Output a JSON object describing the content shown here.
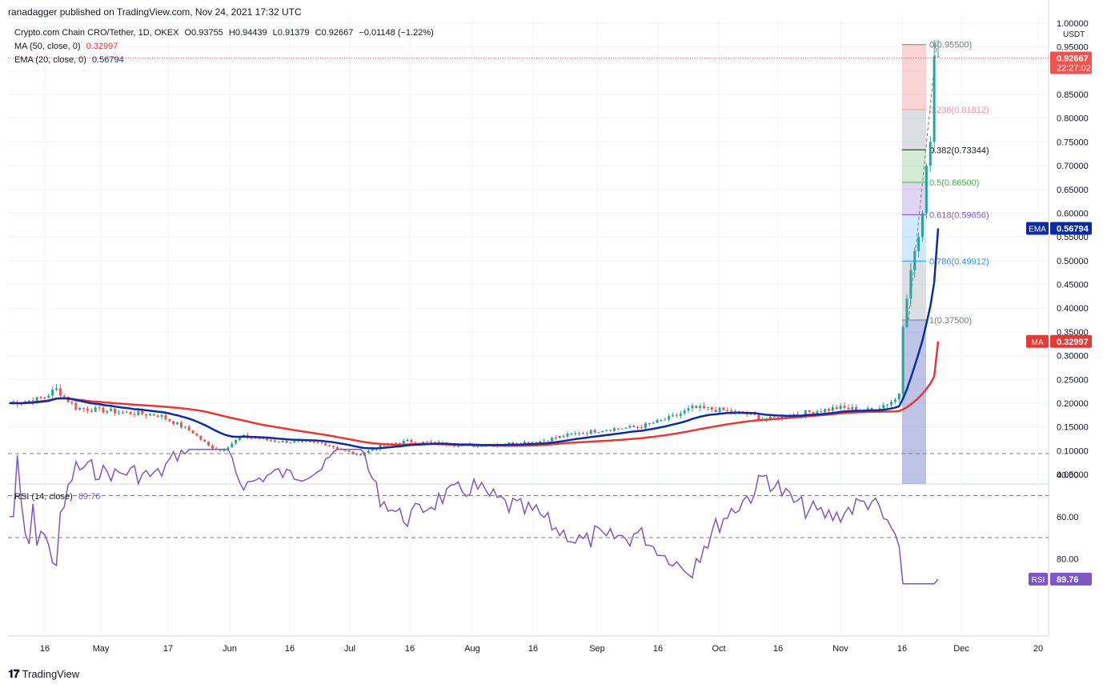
{
  "header": {
    "publisher": "ranadagger published on TradingView.com, Nov 24, 2021 17:32 UTC"
  },
  "legend": {
    "symbol": "Crypto.com Chain CRO/Tether, 1D, OKEX",
    "open": "O0.93755",
    "high": "H0.94439",
    "low": "L0.91379",
    "close": "C0.92667",
    "change": "−0.01148 (−1.22%)",
    "ma_label": "MA (50, close, 0)",
    "ma_value": "0.32997",
    "ema_label": "EMA (20, close, 0)",
    "ema_value": "0.56794"
  },
  "rsi_legend": {
    "label": "RSI (14, close)",
    "value": "89.76"
  },
  "footer": {
    "brand": "TradingView"
  },
  "colors": {
    "up": "#26a69a",
    "down": "#ef5350",
    "ma": "#e53935",
    "ema": "#0d2d9e",
    "rsi": "#7e57c2",
    "price_tag": "#ef5350",
    "ema_tag": "#0d2d9e",
    "ma_tag": "#e53935"
  },
  "chart_data": [
    {
      "type": "candlestick",
      "title": "Crypto.com Chain CRO/Tether, 1D, OKEX",
      "y_unit": "USDT",
      "ylim": [
        0.05,
        1.0
      ],
      "y_ticks": [
        "1.00000",
        "0.95000",
        "0.90000",
        "0.85000",
        "0.80000",
        "0.75000",
        "0.70000",
        "0.65000",
        "0.60000",
        "0.55000",
        "0.50000",
        "0.45000",
        "0.40000",
        "0.35000",
        "0.30000",
        "0.25000",
        "0.20000",
        "0.15000",
        "0.10000",
        "0.05000"
      ],
      "x_ticks": [
        "16",
        "May",
        "17",
        "Jun",
        "16",
        "Jul",
        "16",
        "Aug",
        "16",
        "Sep",
        "16",
        "Oct",
        "16",
        "Nov",
        "16",
        "Dec",
        "20"
      ],
      "last_price": "0.92667",
      "countdown": "22:27:02",
      "ema_tag": {
        "label": "EMA",
        "value": "0.56794"
      },
      "ma_tag": {
        "label": "MA",
        "value": "0.32997"
      },
      "series": [
        {
          "name": "MA (50, close, 0)",
          "last": 0.32997
        },
        {
          "name": "EMA (20, close, 0)",
          "last": 0.56794
        }
      ],
      "fibonacci": [
        {
          "label": "0(0.95500)",
          "level": 0.955
        },
        {
          "label": "0.236(0.81812)",
          "level": 0.81812
        },
        {
          "label": "0.382(0.73344)",
          "level": 0.73344
        },
        {
          "label": "0.5(0.66500)",
          "level": 0.665
        },
        {
          "label": "0.618(0.59656)",
          "level": 0.59656
        },
        {
          "label": "0.786(0.49912)",
          "level": 0.49912
        },
        {
          "label": "1(0.37500)",
          "level": 0.375
        }
      ]
    },
    {
      "type": "line",
      "title": "RSI (14, close)",
      "ylim": [
        25,
        92
      ],
      "y_ticks": [
        "80.00",
        "60.00",
        "40.00"
      ],
      "bands": [
        30,
        50,
        70
      ],
      "last": "89.76"
    }
  ]
}
